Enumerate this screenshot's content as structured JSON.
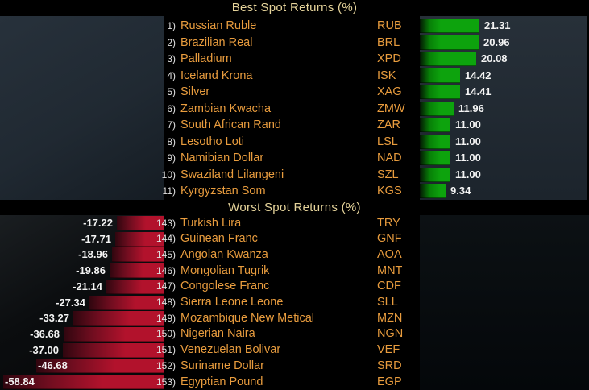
{
  "best": {
    "title": "Best Spot Returns (%)",
    "rows": [
      {
        "rank": "1)",
        "name": "Russian Ruble",
        "ticker": "RUB",
        "value": 21.31,
        "label": "21.31"
      },
      {
        "rank": "2)",
        "name": "Brazilian Real",
        "ticker": "BRL",
        "value": 20.96,
        "label": "20.96"
      },
      {
        "rank": "3)",
        "name": "Palladium",
        "ticker": "XPD",
        "value": 20.08,
        "label": "20.08"
      },
      {
        "rank": "4)",
        "name": "Iceland Krona",
        "ticker": "ISK",
        "value": 14.42,
        "label": "14.42"
      },
      {
        "rank": "5)",
        "name": "Silver",
        "ticker": "XAG",
        "value": 14.41,
        "label": "14.41"
      },
      {
        "rank": "6)",
        "name": "Zambian Kwacha",
        "ticker": "ZMW",
        "value": 11.96,
        "label": "11.96"
      },
      {
        "rank": "7)",
        "name": "South African Rand",
        "ticker": "ZAR",
        "value": 11.0,
        "label": "11.00"
      },
      {
        "rank": "8)",
        "name": "Lesotho Loti",
        "ticker": "LSL",
        "value": 11.0,
        "label": "11.00"
      },
      {
        "rank": "9)",
        "name": "Namibian Dollar",
        "ticker": "NAD",
        "value": 11.0,
        "label": "11.00"
      },
      {
        "rank": "10)",
        "name": "Swaziland Lilangeni",
        "ticker": "SZL",
        "value": 11.0,
        "label": "11.00"
      },
      {
        "rank": "11)",
        "name": "Kyrgyzstan Som",
        "ticker": "KGS",
        "value": 9.34,
        "label": "9.34"
      }
    ]
  },
  "worst": {
    "title": "Worst Spot Returns (%)",
    "rows": [
      {
        "rank": "143)",
        "name": "Turkish Lira",
        "ticker": "TRY",
        "value": -17.22,
        "label": "-17.22"
      },
      {
        "rank": "144)",
        "name": "Guinean Franc",
        "ticker": "GNF",
        "value": -17.71,
        "label": "-17.71"
      },
      {
        "rank": "145)",
        "name": "Angolan Kwanza",
        "ticker": "AOA",
        "value": -18.96,
        "label": "-18.96"
      },
      {
        "rank": "146)",
        "name": "Mongolian Tugrik",
        "ticker": "MNT",
        "value": -19.86,
        "label": "-19.86"
      },
      {
        "rank": "147)",
        "name": "Congolese Franc",
        "ticker": "CDF",
        "value": -21.14,
        "label": "-21.14"
      },
      {
        "rank": "148)",
        "name": "Sierra Leone Leone",
        "ticker": "SLL",
        "value": -27.34,
        "label": "-27.34"
      },
      {
        "rank": "149)",
        "name": "Mozambique New Metical",
        "ticker": "MZN",
        "value": -33.27,
        "label": "-33.27"
      },
      {
        "rank": "150)",
        "name": "Nigerian Naira",
        "ticker": "NGN",
        "value": -36.68,
        "label": "-36.68"
      },
      {
        "rank": "151)",
        "name": "Venezuelan Bolivar",
        "ticker": "VEF",
        "value": -37.0,
        "label": "-37.00"
      },
      {
        "rank": "152)",
        "name": "Suriname Dollar",
        "ticker": "SRD",
        "value": -46.68,
        "label": "-46.68"
      },
      {
        "rank": "153)",
        "name": "Egyptian Pound",
        "ticker": "EGP",
        "value": -58.84,
        "label": "-58.84"
      }
    ]
  },
  "colors": {
    "background": "#000000",
    "title_text": "#e5d39a",
    "row_text_amber": "#e89c3e",
    "rank_text": "#e0e0e0",
    "value_text": "#f4f4f4",
    "positive_bar": "#0da30d",
    "negative_bar": "#b2122c",
    "best_panel": "#232d36",
    "worst_panel": "#0b0e10"
  },
  "chart_data": [
    {
      "type": "bar",
      "orientation": "horizontal",
      "title": "Best Spot Returns (%)",
      "categories": [
        "Russian Ruble",
        "Brazilian Real",
        "Palladium",
        "Iceland Krona",
        "Silver",
        "Zambian Kwacha",
        "South African Rand",
        "Lesotho Loti",
        "Namibian Dollar",
        "Swaziland Lilangeni",
        "Kyrgyzstan Som"
      ],
      "tickers": [
        "RUB",
        "BRL",
        "XPD",
        "ISK",
        "XAG",
        "ZMW",
        "ZAR",
        "LSL",
        "NAD",
        "SZL",
        "KGS"
      ],
      "values": [
        21.31,
        20.96,
        20.08,
        14.42,
        14.41,
        11.96,
        11.0,
        11.0,
        11.0,
        11.0,
        9.34
      ],
      "xlim": [
        0,
        60
      ],
      "bar_color": "#0da30d",
      "legend": "none",
      "grid": false
    },
    {
      "type": "bar",
      "orientation": "horizontal",
      "title": "Worst Spot Returns (%)",
      "categories": [
        "Turkish Lira",
        "Guinean Franc",
        "Angolan Kwanza",
        "Mongolian Tugrik",
        "Congolese Franc",
        "Sierra Leone Leone",
        "Mozambique New Metical",
        "Nigerian Naira",
        "Venezuelan Bolivar",
        "Suriname Dollar",
        "Egyptian Pound"
      ],
      "tickers": [
        "TRY",
        "GNF",
        "AOA",
        "MNT",
        "CDF",
        "SLL",
        "MZN",
        "NGN",
        "VEF",
        "SRD",
        "EGP"
      ],
      "values": [
        -17.22,
        -17.71,
        -18.96,
        -19.86,
        -21.14,
        -27.34,
        -33.27,
        -36.68,
        -37.0,
        -46.68,
        -58.84
      ],
      "xlim": [
        -60,
        0
      ],
      "bar_color": "#b2122c",
      "legend": "none",
      "grid": false
    }
  ]
}
